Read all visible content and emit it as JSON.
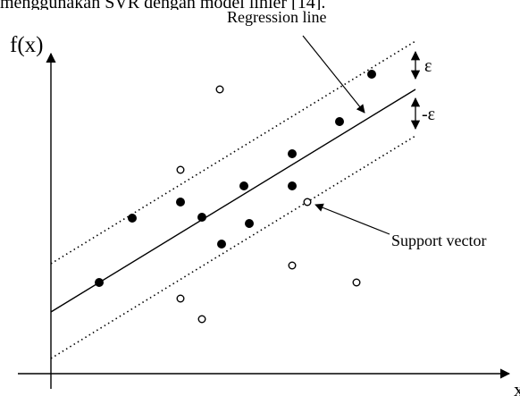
{
  "header_text": "menggunakan SVR dengan model linier [14].",
  "labels": {
    "y_axis": "f(x)",
    "x_axis": "x",
    "regression_line": "Regression line",
    "epsilon": "ε",
    "neg_epsilon": "-ε",
    "support_vector": "Support vector"
  },
  "points": {
    "inside": [
      [
        111,
        316
      ],
      [
        148,
        244
      ],
      [
        202,
        226
      ],
      [
        226,
        243
      ],
      [
        248,
        273
      ],
      [
        273,
        208
      ],
      [
        279,
        250
      ],
      [
        327,
        172
      ],
      [
        327,
        208
      ],
      [
        380,
        136
      ],
      [
        416,
        83
      ]
    ],
    "outside": [
      [
        246,
        100
      ],
      [
        202,
        190
      ],
      [
        344,
        226
      ],
      [
        327,
        297
      ],
      [
        202,
        334
      ],
      [
        226,
        357
      ],
      [
        399,
        316
      ]
    ]
  }
}
